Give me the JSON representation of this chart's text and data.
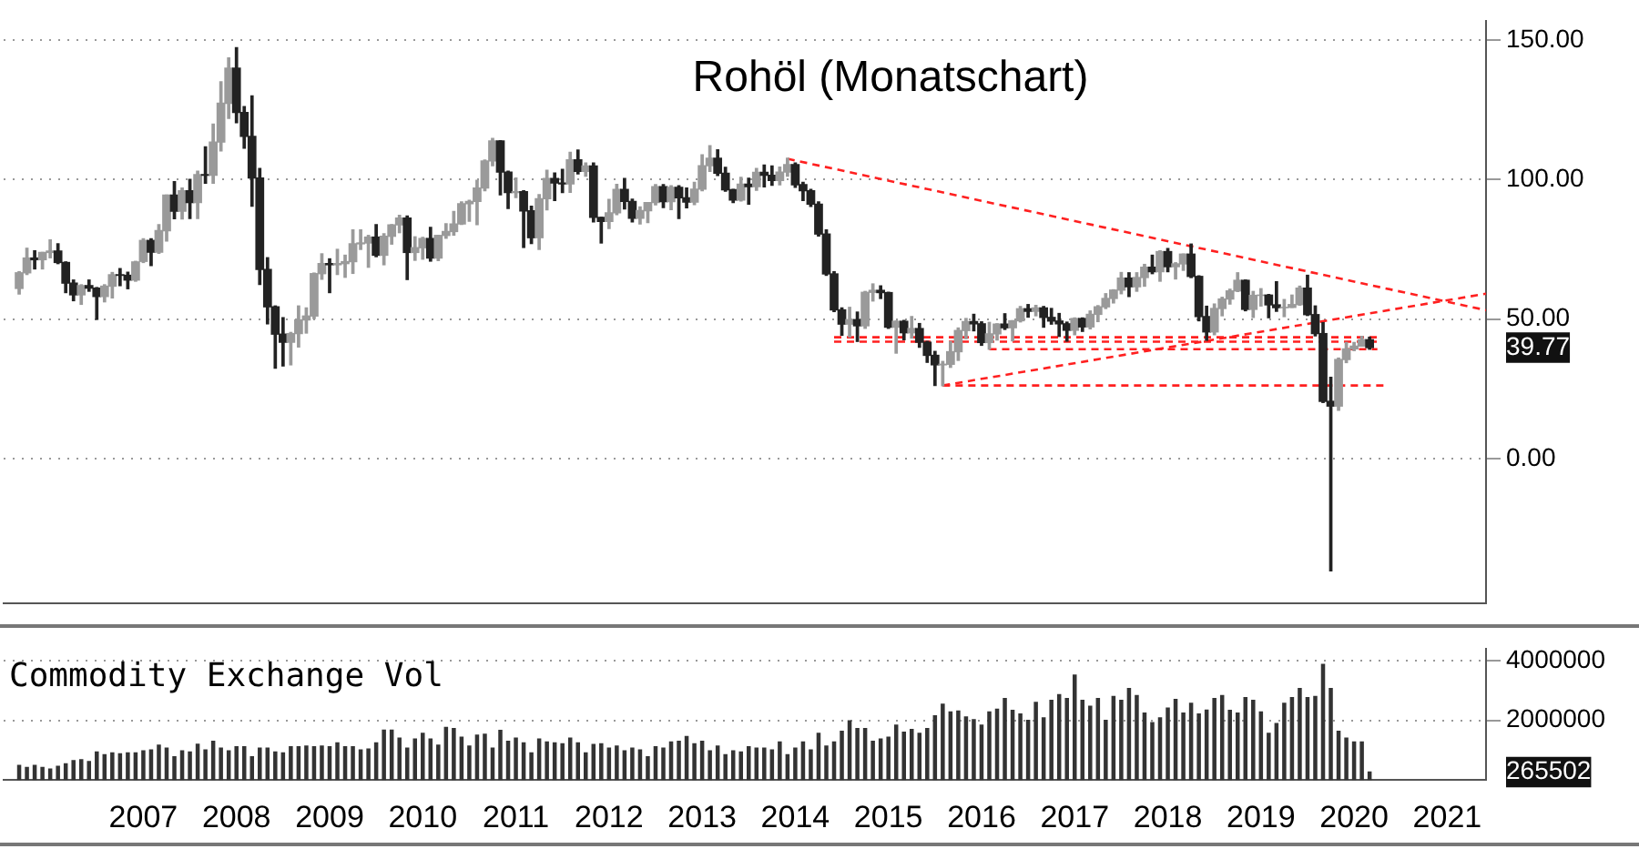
{
  "chart_data": [
    {
      "type": "candlestick",
      "title": "Rohöl (Monatschart)",
      "x": [
        "2006-03",
        "2006-04",
        "2006-05",
        "2006-06",
        "2006-07",
        "2006-08",
        "2006-09",
        "2006-10",
        "2006-11",
        "2006-12",
        "2007-01",
        "2007-02",
        "2007-03",
        "2007-04",
        "2007-05",
        "2007-06",
        "2007-07",
        "2007-08",
        "2007-09",
        "2007-10",
        "2007-11",
        "2007-12",
        "2008-01",
        "2008-02",
        "2008-03",
        "2008-04",
        "2008-05",
        "2008-06",
        "2008-07",
        "2008-08",
        "2008-09",
        "2008-10",
        "2008-11",
        "2008-12",
        "2009-01",
        "2009-02",
        "2009-03",
        "2009-04",
        "2009-05",
        "2009-06",
        "2009-07",
        "2009-08",
        "2009-09",
        "2009-10",
        "2009-11",
        "2009-12",
        "2010-01",
        "2010-02",
        "2010-03",
        "2010-04",
        "2010-05",
        "2010-06",
        "2010-07",
        "2010-08",
        "2010-09",
        "2010-10",
        "2010-11",
        "2010-12",
        "2011-01",
        "2011-02",
        "2011-03",
        "2011-04",
        "2011-05",
        "2011-06",
        "2011-07",
        "2011-08",
        "2011-09",
        "2011-10",
        "2011-11",
        "2011-12",
        "2012-01",
        "2012-02",
        "2012-03",
        "2012-04",
        "2012-05",
        "2012-06",
        "2012-07",
        "2012-08",
        "2012-09",
        "2012-10",
        "2012-11",
        "2012-12",
        "2013-01",
        "2013-02",
        "2013-03",
        "2013-04",
        "2013-05",
        "2013-06",
        "2013-07",
        "2013-08",
        "2013-09",
        "2013-10",
        "2013-11",
        "2013-12",
        "2014-01",
        "2014-02",
        "2014-03",
        "2014-04",
        "2014-05",
        "2014-06",
        "2014-07",
        "2014-08",
        "2014-09",
        "2014-10",
        "2014-11",
        "2014-12",
        "2015-01",
        "2015-02",
        "2015-03",
        "2015-04",
        "2015-05",
        "2015-06",
        "2015-07",
        "2015-08",
        "2015-09",
        "2015-10",
        "2015-11",
        "2015-12",
        "2016-01",
        "2016-02",
        "2016-03",
        "2016-04",
        "2016-05",
        "2016-06",
        "2016-07",
        "2016-08",
        "2016-09",
        "2016-10",
        "2016-11",
        "2016-12",
        "2017-01",
        "2017-02",
        "2017-03",
        "2017-04",
        "2017-05",
        "2017-06",
        "2017-07",
        "2017-08",
        "2017-09",
        "2017-10",
        "2017-11",
        "2017-12",
        "2018-01",
        "2018-02",
        "2018-03",
        "2018-04",
        "2018-05",
        "2018-06",
        "2018-07",
        "2018-08",
        "2018-09",
        "2018-10",
        "2018-11",
        "2018-12",
        "2019-01",
        "2019-02",
        "2019-03",
        "2019-04",
        "2019-05",
        "2019-06",
        "2019-07",
        "2019-08",
        "2019-09",
        "2019-10",
        "2019-11",
        "2019-12",
        "2020-01",
        "2020-02",
        "2020-03",
        "2020-04",
        "2020-05",
        "2020-06",
        "2020-07",
        "2020-08",
        "2020-09"
      ],
      "ohlc": [
        [
          61.0,
          67.0,
          59.0,
          66.6
        ],
        [
          66.6,
          75.4,
          66.0,
          71.9
        ],
        [
          71.9,
          74.5,
          68.0,
          71.3
        ],
        [
          71.3,
          73.9,
          68.0,
          73.9
        ],
        [
          73.9,
          78.4,
          72.0,
          74.4
        ],
        [
          74.4,
          77.0,
          69.9,
          70.3
        ],
        [
          70.3,
          70.5,
          59.5,
          62.9
        ],
        [
          62.9,
          64.0,
          56.6,
          58.7
        ],
        [
          58.7,
          62.3,
          55.3,
          62.0
        ],
        [
          62.0,
          64.0,
          60.0,
          61.1
        ],
        [
          61.1,
          61.3,
          49.9,
          58.1
        ],
        [
          58.1,
          62.3,
          56.2,
          61.8
        ],
        [
          61.8,
          66.7,
          57.6,
          65.9
        ],
        [
          65.9,
          68.1,
          62.0,
          65.7
        ],
        [
          65.7,
          66.8,
          60.9,
          64.0
        ],
        [
          64.0,
          70.7,
          63.6,
          70.5
        ],
        [
          70.7,
          78.8,
          70.3,
          78.2
        ],
        [
          78.2,
          78.8,
          69.2,
          74.0
        ],
        [
          74.0,
          83.9,
          73.6,
          81.7
        ],
        [
          81.7,
          94.5,
          78.0,
          94.5
        ],
        [
          94.5,
          99.3,
          86.0,
          88.7
        ],
        [
          88.7,
          97.0,
          85.9,
          96.0
        ],
        [
          96.0,
          100.1,
          86.1,
          91.8
        ],
        [
          91.8,
          103.0,
          86.1,
          101.8
        ],
        [
          101.8,
          111.8,
          98.7,
          101.6
        ],
        [
          101.6,
          119.9,
          98.7,
          113.5
        ],
        [
          113.5,
          135.1,
          110.3,
          127.4
        ],
        [
          127.4,
          143.7,
          122.0,
          140.0
        ],
        [
          140.0,
          147.3,
          120.4,
          124.1
        ],
        [
          124.1,
          126.2,
          111.3,
          115.5
        ],
        [
          115.5,
          130.0,
          90.5,
          100.6
        ],
        [
          100.6,
          104.0,
          62.4,
          67.8
        ],
        [
          67.8,
          72.0,
          48.3,
          54.4
        ],
        [
          54.4,
          54.7,
          32.4,
          44.6
        ],
        [
          44.6,
          50.5,
          33.2,
          41.7
        ],
        [
          41.7,
          45.2,
          33.6,
          44.8
        ],
        [
          44.8,
          54.7,
          40.0,
          49.7
        ],
        [
          49.7,
          54.0,
          45.0,
          51.1
        ],
        [
          51.1,
          66.5,
          50.2,
          66.3
        ],
        [
          66.3,
          73.4,
          64.3,
          69.9
        ],
        [
          69.9,
          71.6,
          59.5,
          69.5
        ],
        [
          69.5,
          75.0,
          66.0,
          69.9
        ],
        [
          69.9,
          72.9,
          65.0,
          70.6
        ],
        [
          70.6,
          82.0,
          66.4,
          77.0
        ],
        [
          77.0,
          82.0,
          75.0,
          77.3
        ],
        [
          77.3,
          80.0,
          68.6,
          79.4
        ],
        [
          79.4,
          83.9,
          72.4,
          72.9
        ],
        [
          72.9,
          80.6,
          69.5,
          79.7
        ],
        [
          79.7,
          83.9,
          76.9,
          83.8
        ],
        [
          83.8,
          87.2,
          81.0,
          86.2
        ],
        [
          86.2,
          87.0,
          64.2,
          73.9
        ],
        [
          73.9,
          79.5,
          71.1,
          75.6
        ],
        [
          75.6,
          79.3,
          71.5,
          78.9
        ],
        [
          78.9,
          82.9,
          70.8,
          71.9
        ],
        [
          71.9,
          80.0,
          71.0,
          80.0
        ],
        [
          80.0,
          84.2,
          79.0,
          81.4
        ],
        [
          81.4,
          88.6,
          80.1,
          84.1
        ],
        [
          84.1,
          92.0,
          84.0,
          91.4
        ],
        [
          91.4,
          92.6,
          85.1,
          92.2
        ],
        [
          92.2,
          99.8,
          83.9,
          97.0
        ],
        [
          97.0,
          107.0,
          96.0,
          106.7
        ],
        [
          106.7,
          114.8,
          105.0,
          113.9
        ],
        [
          113.9,
          114.0,
          94.6,
          102.7
        ],
        [
          102.7,
          103.0,
          89.7,
          95.4
        ],
        [
          95.4,
          100.6,
          93.6,
          95.7
        ],
        [
          95.7,
          96.0,
          75.7,
          88.8
        ],
        [
          88.8,
          90.5,
          77.1,
          79.2
        ],
        [
          79.2,
          94.6,
          75.0,
          93.2
        ],
        [
          93.2,
          103.4,
          89.2,
          100.4
        ],
        [
          100.4,
          102.4,
          92.5,
          98.8
        ],
        [
          98.8,
          103.7,
          95.4,
          98.5
        ],
        [
          98.5,
          109.8,
          95.5,
          107.1
        ],
        [
          107.1,
          110.6,
          102.1,
          103.0
        ],
        [
          103.0,
          106.0,
          101.3,
          104.9
        ],
        [
          104.9,
          106.0,
          84.9,
          86.5
        ],
        [
          86.5,
          86.5,
          77.3,
          85.0
        ],
        [
          85.0,
          92.9,
          82.5,
          88.1
        ],
        [
          88.1,
          98.3,
          87.5,
          96.5
        ],
        [
          96.5,
          100.4,
          89.5,
          92.2
        ],
        [
          92.2,
          93.0,
          84.9,
          86.2
        ],
        [
          86.2,
          90.2,
          84.1,
          88.9
        ],
        [
          88.9,
          91.8,
          84.6,
          91.8
        ],
        [
          91.8,
          98.2,
          91.0,
          97.5
        ],
        [
          97.5,
          98.2,
          90.0,
          92.1
        ],
        [
          92.1,
          97.8,
          89.3,
          97.2
        ],
        [
          97.2,
          97.8,
          86.1,
          93.5
        ],
        [
          93.5,
          97.0,
          89.9,
          92.0
        ],
        [
          92.0,
          99.0,
          91.1,
          96.6
        ],
        [
          96.6,
          108.9,
          96.0,
          105.0
        ],
        [
          105.0,
          112.2,
          103.0,
          107.7
        ],
        [
          107.7,
          110.7,
          101.5,
          102.3
        ],
        [
          102.3,
          104.4,
          95.9,
          96.4
        ],
        [
          96.4,
          96.5,
          91.8,
          92.7
        ],
        [
          92.7,
          100.8,
          92.4,
          98.4
        ],
        [
          98.4,
          100.5,
          91.2,
          97.5
        ],
        [
          97.5,
          104.0,
          96.2,
          102.6
        ],
        [
          102.6,
          105.2,
          97.4,
          101.6
        ],
        [
          101.6,
          104.9,
          98.0,
          99.7
        ],
        [
          99.7,
          104.5,
          98.2,
          102.7
        ],
        [
          102.7,
          107.7,
          101.3,
          105.4
        ],
        [
          105.4,
          106.0,
          97.3,
          98.2
        ],
        [
          98.2,
          99.0,
          92.5,
          96.0
        ],
        [
          96.0,
          96.5,
          90.4,
          91.2
        ],
        [
          91.2,
          92.0,
          79.8,
          80.5
        ],
        [
          80.5,
          82.0,
          65.7,
          66.2
        ],
        [
          66.2,
          67.0,
          52.7,
          53.3
        ],
        [
          53.3,
          54.0,
          44.2,
          48.2
        ],
        [
          48.2,
          54.2,
          43.6,
          49.8
        ],
        [
          49.8,
          52.5,
          42.0,
          47.6
        ],
        [
          47.6,
          59.9,
          46.7,
          59.6
        ],
        [
          59.6,
          62.6,
          56.5,
          60.3
        ],
        [
          60.3,
          61.9,
          57.4,
          59.5
        ],
        [
          59.5,
          59.6,
          46.7,
          47.1
        ],
        [
          47.1,
          49.3,
          37.8,
          49.2
        ],
        [
          49.2,
          49.5,
          42.6,
          45.1
        ],
        [
          45.1,
          50.9,
          43.2,
          46.6
        ],
        [
          46.6,
          48.4,
          39.9,
          41.7
        ],
        [
          41.7,
          42.0,
          34.5,
          37.0
        ],
        [
          37.0,
          38.4,
          26.2,
          33.6
        ],
        [
          33.6,
          34.8,
          26.1,
          33.8
        ],
        [
          33.8,
          41.9,
          32.7,
          38.3
        ],
        [
          38.3,
          46.8,
          35.2,
          45.9
        ],
        [
          45.9,
          50.2,
          43.0,
          49.1
        ],
        [
          49.1,
          51.7,
          45.8,
          48.3
        ],
        [
          48.3,
          49.0,
          40.6,
          41.6
        ],
        [
          41.6,
          48.8,
          39.2,
          44.7
        ],
        [
          44.7,
          48.3,
          42.5,
          48.2
        ],
        [
          48.2,
          51.9,
          46.3,
          46.9
        ],
        [
          46.9,
          49.4,
          42.2,
          49.4
        ],
        [
          49.4,
          54.5,
          49.0,
          53.7
        ],
        [
          53.7,
          55.2,
          50.7,
          52.8
        ],
        [
          52.8,
          54.9,
          51.2,
          54.0
        ],
        [
          54.0,
          54.5,
          47.1,
          50.6
        ],
        [
          50.6,
          53.8,
          48.2,
          49.3
        ],
        [
          49.3,
          52.0,
          43.8,
          48.3
        ],
        [
          48.3,
          48.9,
          42.1,
          46.0
        ],
        [
          46.0,
          50.4,
          44.4,
          50.2
        ],
        [
          50.2,
          50.4,
          45.6,
          47.2
        ],
        [
          47.2,
          52.9,
          46.5,
          51.7
        ],
        [
          51.7,
          54.8,
          49.1,
          54.4
        ],
        [
          54.4,
          59.1,
          53.8,
          57.4
        ],
        [
          57.4,
          60.5,
          55.8,
          60.4
        ],
        [
          60.4,
          66.7,
          59.1,
          64.7
        ],
        [
          64.7,
          66.6,
          58.1,
          61.6
        ],
        [
          61.6,
          66.6,
          60.0,
          64.9
        ],
        [
          64.9,
          69.6,
          61.8,
          68.6
        ],
        [
          68.6,
          72.9,
          66.3,
          67.0
        ],
        [
          67.0,
          74.5,
          63.6,
          74.2
        ],
        [
          74.2,
          75.3,
          67.0,
          68.8
        ],
        [
          68.8,
          70.2,
          64.4,
          69.8
        ],
        [
          69.8,
          73.3,
          67.5,
          73.3
        ],
        [
          73.3,
          76.9,
          64.9,
          65.3
        ],
        [
          65.3,
          65.5,
          49.4,
          50.9
        ],
        [
          50.9,
          54.6,
          42.4,
          45.4
        ],
        [
          45.4,
          55.4,
          44.4,
          53.8
        ],
        [
          53.8,
          57.8,
          51.2,
          57.2
        ],
        [
          57.2,
          60.7,
          55.4,
          60.1
        ],
        [
          60.1,
          66.6,
          59.9,
          63.9
        ],
        [
          63.9,
          64.0,
          53.0,
          53.5
        ],
        [
          53.5,
          59.9,
          50.6,
          58.5
        ],
        [
          58.5,
          60.9,
          54.7,
          58.6
        ],
        [
          58.6,
          58.8,
          50.5,
          55.1
        ],
        [
          55.1,
          63.4,
          52.8,
          54.1
        ],
        [
          54.1,
          57.0,
          50.9,
          54.2
        ],
        [
          54.2,
          58.6,
          54.2,
          55.2
        ],
        [
          55.2,
          61.8,
          55.0,
          61.1
        ],
        [
          61.1,
          65.7,
          51.3,
          51.6
        ],
        [
          51.6,
          54.7,
          44.0,
          44.8
        ],
        [
          44.8,
          48.7,
          20.1,
          20.5
        ],
        [
          20.5,
          29.1,
          -40.3,
          18.8
        ],
        [
          18.8,
          36.0,
          17.3,
          35.5
        ],
        [
          35.5,
          41.6,
          34.4,
          39.3
        ],
        [
          39.3,
          41.6,
          38.7,
          40.3
        ],
        [
          40.3,
          43.8,
          40.3,
          42.6
        ],
        [
          42.6,
          43.5,
          39.2,
          39.77
        ]
      ],
      "colors": [
        "#9a9a9a",
        "#9a9a9a",
        "#222222",
        "#9a9a9a",
        "#9a9a9a",
        "#222222",
        "#222222",
        "#222222",
        "#9a9a9a",
        "#222222",
        "#222222",
        "#9a9a9a",
        "#9a9a9a",
        "#222222",
        "#222222",
        "#9a9a9a",
        "#9a9a9a",
        "#222222",
        "#9a9a9a",
        "#9a9a9a",
        "#222222",
        "#9a9a9a",
        "#222222",
        "#9a9a9a",
        "#222222",
        "#9a9a9a",
        "#9a9a9a",
        "#9a9a9a",
        "#222222",
        "#222222",
        "#222222",
        "#222222",
        "#222222",
        "#222222",
        "#222222",
        "#9a9a9a",
        "#9a9a9a",
        "#9a9a9a",
        "#9a9a9a",
        "#9a9a9a",
        "#222222",
        "#9a9a9a",
        "#9a9a9a",
        "#9a9a9a",
        "#9a9a9a",
        "#9a9a9a",
        "#222222",
        "#9a9a9a",
        "#9a9a9a",
        "#9a9a9a",
        "#222222",
        "#9a9a9a",
        "#9a9a9a",
        "#222222",
        "#9a9a9a",
        "#9a9a9a",
        "#9a9a9a",
        "#9a9a9a",
        "#9a9a9a",
        "#9a9a9a",
        "#9a9a9a",
        "#9a9a9a",
        "#222222",
        "#222222",
        "#9a9a9a",
        "#222222",
        "#222222",
        "#9a9a9a",
        "#9a9a9a",
        "#222222",
        "#222222",
        "#9a9a9a",
        "#222222",
        "#9a9a9a",
        "#222222",
        "#222222",
        "#9a9a9a",
        "#9a9a9a",
        "#222222",
        "#222222",
        "#9a9a9a",
        "#9a9a9a",
        "#9a9a9a",
        "#222222",
        "#9a9a9a",
        "#222222",
        "#222222",
        "#9a9a9a",
        "#9a9a9a",
        "#9a9a9a",
        "#222222",
        "#222222",
        "#222222",
        "#9a9a9a",
        "#222222",
        "#9a9a9a",
        "#222222",
        "#222222",
        "#9a9a9a",
        "#9a9a9a",
        "#222222",
        "#222222",
        "#222222",
        "#222222",
        "#222222",
        "#222222",
        "#222222",
        "#9a9a9a",
        "#222222",
        "#9a9a9a",
        "#9a9a9a",
        "#222222",
        "#222222",
        "#9a9a9a",
        "#222222",
        "#9a9a9a",
        "#222222",
        "#222222",
        "#222222",
        "#9a9a9a",
        "#9a9a9a",
        "#9a9a9a",
        "#9a9a9a",
        "#222222",
        "#222222",
        "#9a9a9a",
        "#9a9a9a",
        "#222222",
        "#9a9a9a",
        "#9a9a9a",
        "#222222",
        "#9a9a9a",
        "#222222",
        "#222222",
        "#222222",
        "#222222",
        "#9a9a9a",
        "#222222",
        "#9a9a9a",
        "#9a9a9a",
        "#9a9a9a",
        "#9a9a9a",
        "#9a9a9a",
        "#222222",
        "#9a9a9a",
        "#9a9a9a",
        "#222222",
        "#9a9a9a",
        "#222222",
        "#9a9a9a",
        "#9a9a9a",
        "#222222",
        "#222222",
        "#222222",
        "#9a9a9a",
        "#9a9a9a",
        "#9a9a9a",
        "#9a9a9a",
        "#222222",
        "#9a9a9a",
        "#9a9a9a",
        "#222222",
        "#222222",
        "#9a9a9a",
        "#9a9a9a",
        "#9a9a9a",
        "#222222",
        "#222222",
        "#222222",
        "#222222",
        "#9a9a9a",
        "#9a9a9a",
        "#9a9a9a",
        "#9a9a9a",
        "#222222"
      ],
      "series": [
        {
          "type": "line",
          "x": [
            "2014-06",
            "2021-12"
          ],
          "values": [
            107.5,
            53.2
          ],
          "color": "#ff2020",
          "line_style": "dashed"
        },
        {
          "type": "line",
          "x": [
            "2016-02",
            "2021-12"
          ],
          "values": [
            26.2,
            59.1
          ],
          "color": "#ff2020",
          "line_style": "dashed"
        },
        {
          "type": "line",
          "x": [
            "2014-12",
            "2020-10"
          ],
          "values": [
            43.5,
            43.5
          ],
          "color": "#ff2020",
          "line_style": "dashed"
        },
        {
          "type": "line",
          "x": [
            "2014-12",
            "2020-10"
          ],
          "values": [
            41.9,
            41.9
          ],
          "color": "#ff2020",
          "line_style": "dashed"
        },
        {
          "type": "line",
          "x": [
            "2016-08",
            "2020-10"
          ],
          "values": [
            39.2,
            39.2
          ],
          "color": "#ff2020",
          "line_style": "dashed"
        },
        {
          "type": "line",
          "x": [
            "2016-02",
            "2020-11"
          ],
          "values": [
            26.2,
            26.2
          ],
          "color": "#ff2020",
          "line_style": "dashed"
        }
      ],
      "xlim": [
        "2006-01",
        "2021-12"
      ],
      "ylim": [
        -52,
        157
      ],
      "yticks": [
        {
          "value": 150,
          "label": "150.00"
        },
        {
          "value": 100,
          "label": "100.00"
        },
        {
          "value": 50,
          "label": "50.00"
        },
        {
          "value": 39.77,
          "label": "39.77"
        },
        {
          "value": 0,
          "label": "0.00"
        }
      ],
      "tick_labels": "y",
      "grid": "y",
      "legend": false
    },
    {
      "type": "bar",
      "title": "Commodity Exchange Vol",
      "x": [
        "2006-03",
        "2006-04",
        "2006-05",
        "2006-06",
        "2006-07",
        "2006-08",
        "2006-09",
        "2006-10",
        "2006-11",
        "2006-12",
        "2007-01",
        "2007-02",
        "2007-03",
        "2007-04",
        "2007-05",
        "2007-06",
        "2007-07",
        "2007-08",
        "2007-09",
        "2007-10",
        "2007-11",
        "2007-12",
        "2008-01",
        "2008-02",
        "2008-03",
        "2008-04",
        "2008-05",
        "2008-06",
        "2008-07",
        "2008-08",
        "2008-09",
        "2008-10",
        "2008-11",
        "2008-12",
        "2009-01",
        "2009-02",
        "2009-03",
        "2009-04",
        "2009-05",
        "2009-06",
        "2009-07",
        "2009-08",
        "2009-09",
        "2009-10",
        "2009-11",
        "2009-12",
        "2010-01",
        "2010-02",
        "2010-03",
        "2010-04",
        "2010-05",
        "2010-06",
        "2010-07",
        "2010-08",
        "2010-09",
        "2010-10",
        "2010-11",
        "2010-12",
        "2011-01",
        "2011-02",
        "2011-03",
        "2011-04",
        "2011-05",
        "2011-06",
        "2011-07",
        "2011-08",
        "2011-09",
        "2011-10",
        "2011-11",
        "2011-12",
        "2012-01",
        "2012-02",
        "2012-03",
        "2012-04",
        "2012-05",
        "2012-06",
        "2012-07",
        "2012-08",
        "2012-09",
        "2012-10",
        "2012-11",
        "2012-12",
        "2013-01",
        "2013-02",
        "2013-03",
        "2013-04",
        "2013-05",
        "2013-06",
        "2013-07",
        "2013-08",
        "2013-09",
        "2013-10",
        "2013-11",
        "2013-12",
        "2014-01",
        "2014-02",
        "2014-03",
        "2014-04",
        "2014-05",
        "2014-06",
        "2014-07",
        "2014-08",
        "2014-09",
        "2014-10",
        "2014-11",
        "2014-12",
        "2015-01",
        "2015-02",
        "2015-03",
        "2015-04",
        "2015-05",
        "2015-06",
        "2015-07",
        "2015-08",
        "2015-09",
        "2015-10",
        "2015-11",
        "2015-12",
        "2016-01",
        "2016-02",
        "2016-03",
        "2016-04",
        "2016-05",
        "2016-06",
        "2016-07",
        "2016-08",
        "2016-09",
        "2016-10",
        "2016-11",
        "2016-12",
        "2017-01",
        "2017-02",
        "2017-03",
        "2017-04",
        "2017-05",
        "2017-06",
        "2017-07",
        "2017-08",
        "2017-09",
        "2017-10",
        "2017-11",
        "2017-12",
        "2018-01",
        "2018-02",
        "2018-03",
        "2018-04",
        "2018-05",
        "2018-06",
        "2018-07",
        "2018-08",
        "2018-09",
        "2018-10",
        "2018-11",
        "2018-12",
        "2019-01",
        "2019-02",
        "2019-03",
        "2019-04",
        "2019-05",
        "2019-06",
        "2019-07",
        "2019-08",
        "2019-09",
        "2019-10",
        "2019-11",
        "2019-12",
        "2020-01",
        "2020-02",
        "2020-03",
        "2020-04",
        "2020-05",
        "2020-06",
        "2020-07",
        "2020-08",
        "2020-09"
      ],
      "values": [
        490000,
        420000,
        490000,
        420000,
        370000,
        460000,
        540000,
        650000,
        680000,
        620000,
        940000,
        850000,
        910000,
        880000,
        910000,
        910000,
        980000,
        1010000,
        1170000,
        1070000,
        780000,
        980000,
        940000,
        1200000,
        1010000,
        1300000,
        1070000,
        980000,
        1110000,
        1110000,
        780000,
        1070000,
        1070000,
        940000,
        910000,
        1110000,
        1110000,
        1140000,
        1110000,
        1140000,
        1110000,
        1240000,
        1110000,
        1110000,
        1010000,
        1040000,
        1240000,
        1670000,
        1670000,
        1400000,
        1070000,
        1370000,
        1560000,
        1370000,
        1170000,
        1760000,
        1720000,
        1430000,
        1140000,
        1500000,
        1530000,
        1070000,
        1660000,
        1300000,
        1400000,
        1240000,
        910000,
        1370000,
        1270000,
        1240000,
        1210000,
        1400000,
        1240000,
        910000,
        1190000,
        1210000,
        1070000,
        1140000,
        980000,
        1070000,
        1010000,
        780000,
        1110000,
        1070000,
        1270000,
        1300000,
        1460000,
        1210000,
        1300000,
        980000,
        1140000,
        850000,
        980000,
        940000,
        1110000,
        1070000,
        1070000,
        1010000,
        1270000,
        850000,
        1070000,
        1270000,
        1010000,
        1560000,
        1140000,
        1270000,
        1630000,
        1980000,
        1720000,
        1720000,
        1300000,
        1370000,
        1430000,
        1840000,
        1600000,
        1690000,
        1560000,
        1720000,
        2150000,
        2540000,
        2280000,
        2310000,
        2110000,
        2020000,
        1840000,
        2280000,
        2370000,
        2730000,
        2330000,
        2210000,
        2000000,
        2600000,
        2080000,
        2670000,
        2860000,
        2730000,
        3510000,
        2670000,
        2470000,
        2730000,
        2000000,
        2800000,
        2670000,
        3060000,
        2830000,
        2240000,
        1920000,
        2080000,
        2410000,
        2700000,
        2240000,
        2570000,
        2210000,
        2340000,
        2730000,
        2830000,
        2330000,
        2240000,
        2760000,
        2670000,
        2280000,
        1560000,
        1890000,
        2570000,
        2760000,
        3060000,
        2760000,
        2800000,
        3870000,
        3060000,
        1630000,
        1400000,
        1270000,
        1270000,
        265502
      ],
      "color": "#333333",
      "xlim": [
        "2006-01",
        "2021-12"
      ],
      "xticks": [
        {
          "value": "2007-07",
          "label": "2007"
        },
        {
          "value": "2008-07",
          "label": "2008"
        },
        {
          "value": "2009-07",
          "label": "2009"
        },
        {
          "value": "2010-07",
          "label": "2010"
        },
        {
          "value": "2011-07",
          "label": "2011"
        },
        {
          "value": "2012-07",
          "label": "2012"
        },
        {
          "value": "2013-07",
          "label": "2013"
        },
        {
          "value": "2014-07",
          "label": "2014"
        },
        {
          "value": "2015-07",
          "label": "2015"
        },
        {
          "value": "2016-07",
          "label": "2016"
        },
        {
          "value": "2017-07",
          "label": "2017"
        },
        {
          "value": "2018-07",
          "label": "2018"
        },
        {
          "value": "2019-07",
          "label": "2019"
        },
        {
          "value": "2020-07",
          "label": "2020"
        },
        {
          "value": "2021-07",
          "label": "2021"
        }
      ],
      "ylim": [
        0,
        4400000
      ],
      "yticks": [
        265502,
        2000000,
        4000000
      ],
      "grid": "y",
      "legend": false
    }
  ]
}
